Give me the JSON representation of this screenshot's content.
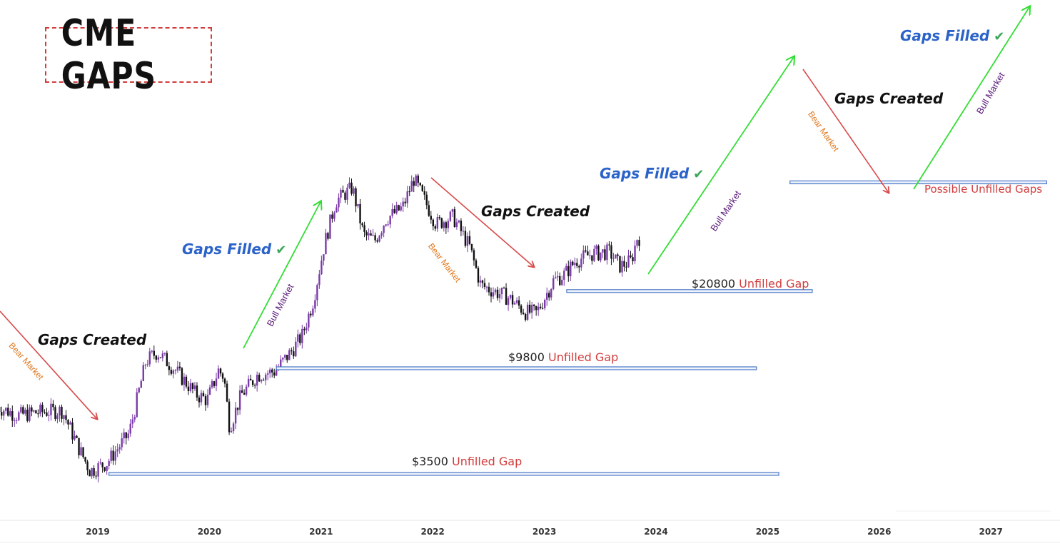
{
  "title": "CME GAPS",
  "colors": {
    "candle_up": "#7b3aa8",
    "candle_down": "#111111",
    "bear_arrow": "#d94a4a",
    "bull_arrow": "#33dd33",
    "gap_line": "#4a78c8",
    "gaps_filled_text": "#2b63c8",
    "unfilled_text": "#d23c3c"
  },
  "annotations": {
    "gaps_created": "Gaps Created",
    "gaps_filled": "Gaps Filled",
    "check": "✔",
    "bear_market": "Bear Market",
    "bull_market": "Bull Market",
    "unfilled_gap": "Unfilled Gap",
    "possible_unfilled": "Possible Unfilled Gaps"
  },
  "chart_data": {
    "type": "candlestick",
    "x_ticks": [
      "2019",
      "2020",
      "2021",
      "2022",
      "2023",
      "2024",
      "2025",
      "2026",
      "2027"
    ],
    "xlim": [
      2018.1,
      2027.5
    ],
    "ylim": [
      0,
      70000
    ],
    "scale": "log",
    "gaps": [
      {
        "price": "$3500",
        "label": "Unfilled Gap",
        "value": 3500,
        "x_start": 2019.1,
        "x_end": 2025.1
      },
      {
        "price": "$9800",
        "label": "Unfilled Gap",
        "value": 9800,
        "x_start": 2020.6,
        "x_end": 2024.9
      },
      {
        "price": "$20800",
        "label": "Unfilled Gap",
        "value": 20800,
        "x_start": 2023.2,
        "x_end": 2025.4
      },
      {
        "price": "",
        "label": "Possible Unfilled Gaps",
        "value": 60000,
        "x_start": 2025.2,
        "x_end": 2027.5
      }
    ],
    "cycles": [
      {
        "phase": "Bear Market",
        "text": "Gaps Created"
      },
      {
        "phase": "Bull Market",
        "text": "Gaps Filled"
      },
      {
        "phase": "Bear Market",
        "text": "Gaps Created"
      },
      {
        "phase": "Bull Market",
        "text": "Gaps Filled"
      },
      {
        "phase": "Bear Market",
        "text": "Gaps Created"
      },
      {
        "phase": "Bull Market",
        "text": "Gaps Filled"
      }
    ],
    "price_path": [
      [
        2018.1,
        6800
      ],
      [
        2018.3,
        6200
      ],
      [
        2018.5,
        6400
      ],
      [
        2018.7,
        6500
      ],
      [
        2018.85,
        4500
      ],
      [
        2018.95,
        3600
      ],
      [
        2019.1,
        3900
      ],
      [
        2019.3,
        5200
      ],
      [
        2019.45,
        10500
      ],
      [
        2019.55,
        11500
      ],
      [
        2019.7,
        9800
      ],
      [
        2019.9,
        7600
      ],
      [
        2020.0,
        7200
      ],
      [
        2020.1,
        9600
      ],
      [
        2020.15,
        9000
      ],
      [
        2020.2,
        5500
      ],
      [
        2020.3,
        7500
      ],
      [
        2020.45,
        9200
      ],
      [
        2020.6,
        9500
      ],
      [
        2020.75,
        11500
      ],
      [
        2020.85,
        13500
      ],
      [
        2020.95,
        19000
      ],
      [
        2021.05,
        33000
      ],
      [
        2021.15,
        50000
      ],
      [
        2021.3,
        57000
      ],
      [
        2021.4,
        36000
      ],
      [
        2021.5,
        34000
      ],
      [
        2021.6,
        42000
      ],
      [
        2021.75,
        47000
      ],
      [
        2021.85,
        62000
      ],
      [
        2021.95,
        50000
      ],
      [
        2022.05,
        40000
      ],
      [
        2022.2,
        43000
      ],
      [
        2022.35,
        32000
      ],
      [
        2022.45,
        22000
      ],
      [
        2022.55,
        21000
      ],
      [
        2022.7,
        19500
      ],
      [
        2022.85,
        17000
      ],
      [
        2022.95,
        16800
      ],
      [
        2023.1,
        23000
      ],
      [
        2023.2,
        24500
      ],
      [
        2023.3,
        28000
      ],
      [
        2023.45,
        30000
      ],
      [
        2023.6,
        30500
      ],
      [
        2023.7,
        26500
      ],
      [
        2023.8,
        28000
      ],
      [
        2023.85,
        35000
      ]
    ]
  }
}
